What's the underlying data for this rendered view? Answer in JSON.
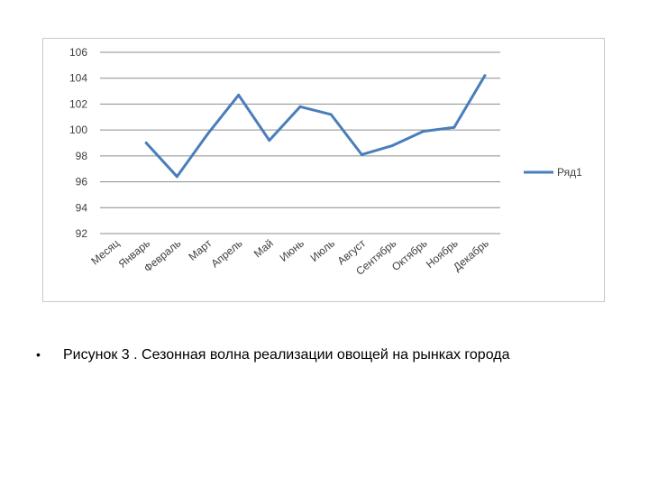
{
  "chart_data": {
    "type": "line",
    "categories": [
      "Месяц",
      "Январь",
      "Февраль",
      "Март",
      "Апрель",
      "Май",
      "Июнь",
      "Июль",
      "Август",
      "Сентябрь",
      "Октябрь",
      "Ноябрь",
      "Декабрь"
    ],
    "series": [
      {
        "name": "Ряд1",
        "values": [
          null,
          99.0,
          96.4,
          99.7,
          102.7,
          99.2,
          101.8,
          101.2,
          98.1,
          98.8,
          99.9,
          100.2,
          104.2
        ],
        "color": "#4a7ebb"
      }
    ],
    "ylim": [
      92,
      106
    ],
    "yticks": [
      92,
      94,
      96,
      98,
      100,
      102,
      104,
      106
    ],
    "grid": true,
    "legend": "right"
  },
  "caption": {
    "bullet": "•",
    "text": "Рисунок 3 . Сезонная волна реализации овощей на рынках города"
  }
}
